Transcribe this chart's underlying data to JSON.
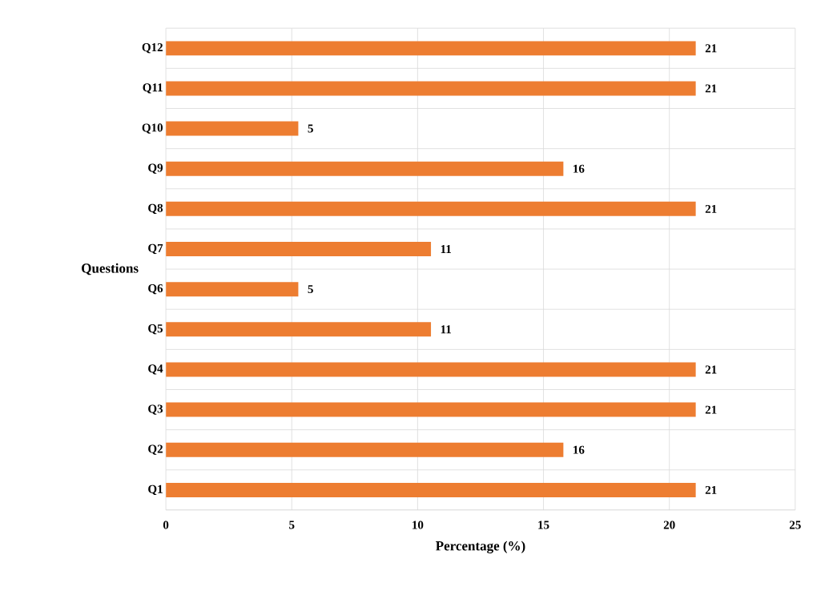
{
  "chart_data": {
    "type": "bar",
    "orientation": "horizontal",
    "xlabel": "Percentage (%)",
    "ylabel": "Questions",
    "categories": [
      "Q12",
      "Q11",
      "Q10",
      "Q9",
      "Q8",
      "Q7",
      "Q6",
      "Q5",
      "Q4",
      "Q3",
      "Q2",
      "Q1"
    ],
    "values": [
      21.05,
      21.05,
      5.26,
      15.79,
      21.05,
      10.53,
      5.26,
      10.53,
      21.05,
      21.05,
      15.79,
      21.05
    ],
    "value_labels": [
      "21",
      "21",
      "5",
      "16",
      "21",
      "11",
      "5",
      "11",
      "21",
      "21",
      "16",
      "21"
    ],
    "color": "#ed7d31",
    "xlim": [
      0,
      25
    ],
    "xticks": [
      0,
      5,
      10,
      15,
      20,
      25
    ],
    "grid": true
  }
}
